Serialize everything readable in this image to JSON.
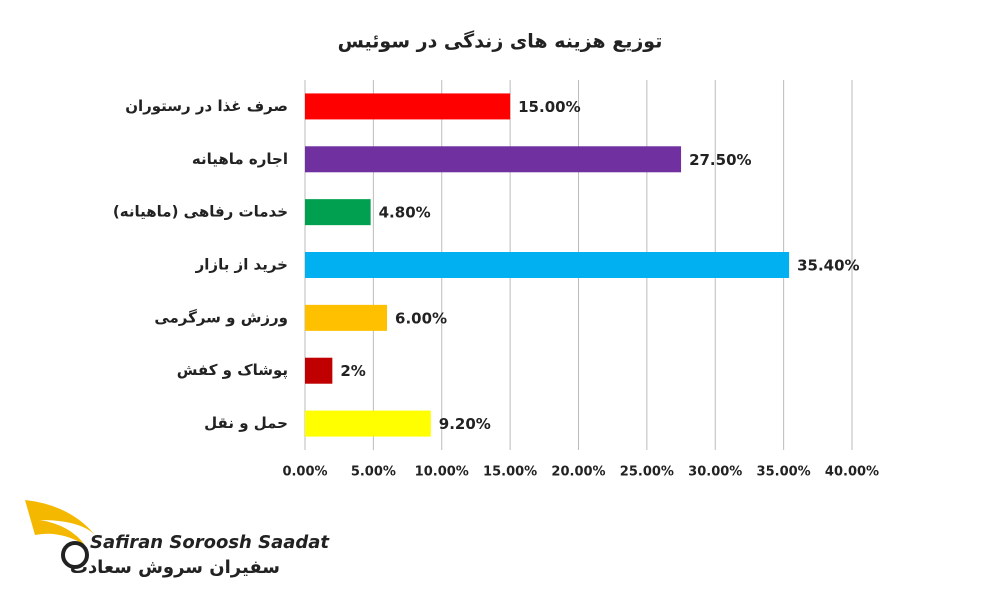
{
  "chart_data": {
    "type": "hbar",
    "title": "توزیع هزینه های زندگی در سوئیس",
    "categories": [
      "صرف غذا در رستوران",
      "اجاره ماهیانه",
      "خدمات رفاهی (ماهیانه)",
      "خرید از بازار",
      "ورزش و سرگرمی",
      "پوشاک و کفش",
      "حمل و نقل"
    ],
    "values": [
      15,
      27.5,
      4.8,
      35.4,
      6,
      2,
      9.2
    ],
    "value_labels": [
      "15.00%",
      "27.50%",
      "4.80%",
      "35.40%",
      "6.00%",
      "2%",
      "9.20%"
    ],
    "colors": [
      "#ff0000",
      "#7030a0",
      "#00a050",
      "#00b0f0",
      "#ffc000",
      "#c00000",
      "#ffff00"
    ],
    "xlim": [
      0,
      40
    ],
    "xticks": [
      {
        "value": 0,
        "label": "0.00%"
      },
      {
        "value": 5,
        "label": "5.00%"
      },
      {
        "value": 10,
        "label": "10.00%"
      },
      {
        "value": 15,
        "label": "15.00%"
      },
      {
        "value": 20,
        "label": "20.00%"
      },
      {
        "value": 25,
        "label": "25.00%"
      },
      {
        "value": 30,
        "label": "30.00%"
      },
      {
        "value": 35,
        "label": "35.00%"
      },
      {
        "value": 40,
        "label": "40.00%"
      }
    ],
    "grid": true
  },
  "logo": {
    "text_en": "Safiran Soroosh Saadat",
    "text_fa": "سفیران سروش سعادت"
  }
}
